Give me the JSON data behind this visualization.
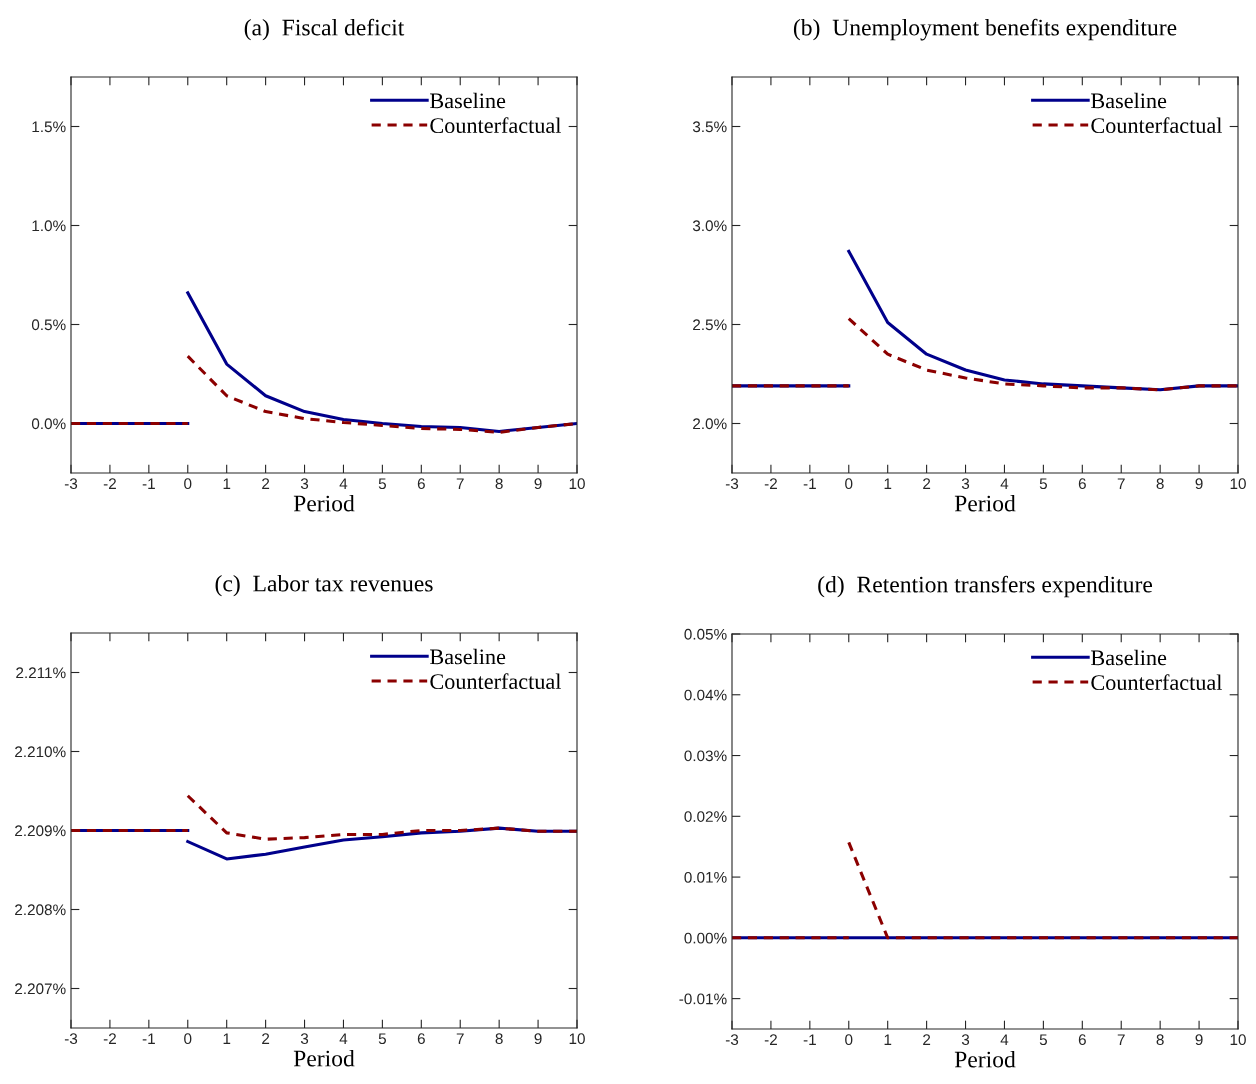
{
  "chart_data": [
    {
      "type": "line",
      "title": "(a)  Fiscal deficit",
      "xlabel": "Period",
      "xlim": [
        -3,
        10
      ],
      "xticks": [
        -3,
        -2,
        -1,
        0,
        1,
        2,
        3,
        4,
        5,
        6,
        7,
        8,
        9,
        10
      ],
      "ylim": [
        -0.25,
        1.75
      ],
      "yticks": [
        {
          "value": 0,
          "label": "0.0%"
        },
        {
          "value": 0.5,
          "label": "0.5%"
        },
        {
          "value": 1.0,
          "label": "1.0%"
        },
        {
          "value": 1.5,
          "label": "1.5%"
        }
      ],
      "legend": "top right",
      "grid": false,
      "series": [
        {
          "color": "#00008b",
          "line_style": "solid",
          "x": [
            -3,
            -2,
            -1,
            0
          ],
          "values": [
            0,
            0,
            0,
            0
          ]
        },
        {
          "color": "#8b0000",
          "line_style": "dashed",
          "x": [
            -3,
            -2,
            -1,
            0
          ],
          "values": [
            0,
            0,
            0,
            0
          ]
        },
        {
          "name": "Baseline",
          "color": "#00008b",
          "line_style": "solid",
          "x": [
            0,
            1,
            2,
            3,
            4,
            5,
            6,
            7,
            8,
            9,
            10
          ],
          "values": [
            0.66,
            0.3,
            0.14,
            0.06,
            0.02,
            0.0,
            -0.015,
            -0.02,
            -0.04,
            -0.02,
            0
          ]
        },
        {
          "name": "Counterfactual",
          "color": "#8b0000",
          "line_style": "dashed",
          "x": [
            0,
            1,
            2,
            3,
            4,
            5,
            6,
            7,
            8,
            9,
            10
          ],
          "values": [
            0.34,
            0.14,
            0.06,
            0.025,
            0.005,
            -0.01,
            -0.025,
            -0.03,
            -0.045,
            -0.02,
            0
          ]
        }
      ]
    },
    {
      "type": "line",
      "title": "(b)  Unemployment benefits expenditure",
      "xlabel": "Period",
      "xlim": [
        -3,
        10
      ],
      "xticks": [
        -3,
        -2,
        -1,
        0,
        1,
        2,
        3,
        4,
        5,
        6,
        7,
        8,
        9,
        10
      ],
      "ylim": [
        1.75,
        3.75
      ],
      "yticks": [
        {
          "value": 2.0,
          "label": "2.0%"
        },
        {
          "value": 2.5,
          "label": "2.5%"
        },
        {
          "value": 3.0,
          "label": "3.0%"
        },
        {
          "value": 3.5,
          "label": "3.5%"
        }
      ],
      "legend": "top right",
      "grid": false,
      "series": [
        {
          "color": "#00008b",
          "line_style": "solid",
          "x": [
            -3,
            -2,
            -1,
            0
          ],
          "values": [
            2.19,
            2.19,
            2.19,
            2.19
          ]
        },
        {
          "color": "#8b0000",
          "line_style": "dashed",
          "x": [
            -3,
            -2,
            -1,
            0
          ],
          "values": [
            2.19,
            2.19,
            2.19,
            2.19
          ]
        },
        {
          "name": "Baseline",
          "color": "#00008b",
          "line_style": "solid",
          "x": [
            0,
            1,
            2,
            3,
            4,
            5,
            6,
            7,
            8,
            9,
            10
          ],
          "values": [
            2.87,
            2.51,
            2.35,
            2.27,
            2.22,
            2.2,
            2.19,
            2.18,
            2.17,
            2.19,
            2.19
          ]
        },
        {
          "name": "Counterfactual",
          "color": "#8b0000",
          "line_style": "dashed",
          "x": [
            0,
            1,
            2,
            3,
            4,
            5,
            6,
            7,
            8,
            9,
            10
          ],
          "values": [
            2.53,
            2.35,
            2.27,
            2.23,
            2.2,
            2.19,
            2.18,
            2.18,
            2.17,
            2.19,
            2.19
          ]
        }
      ]
    },
    {
      "type": "line",
      "title": "(c)  Labor tax revenues",
      "xlabel": "Period",
      "xlim": [
        -3,
        10
      ],
      "xticks": [
        -3,
        -2,
        -1,
        0,
        1,
        2,
        3,
        4,
        5,
        6,
        7,
        8,
        9,
        10
      ],
      "ylim": [
        2.2065,
        2.2115
      ],
      "yticks": [
        {
          "value": 2.207,
          "label": "2.207%"
        },
        {
          "value": 2.208,
          "label": "2.208%"
        },
        {
          "value": 2.209,
          "label": "2.209%"
        },
        {
          "value": 2.21,
          "label": "2.210%"
        },
        {
          "value": 2.211,
          "label": "2.211%"
        }
      ],
      "legend": "top right",
      "grid": false,
      "series": [
        {
          "color": "#00008b",
          "line_style": "solid",
          "x": [
            -3,
            -2,
            -1,
            0
          ],
          "values": [
            2.209,
            2.209,
            2.209,
            2.209
          ]
        },
        {
          "color": "#8b0000",
          "line_style": "dashed",
          "x": [
            -3,
            -2,
            -1,
            0
          ],
          "values": [
            2.209,
            2.209,
            2.209,
            2.209
          ]
        },
        {
          "name": "Baseline",
          "color": "#00008b",
          "line_style": "solid",
          "x": [
            0,
            1,
            2,
            3,
            4,
            5,
            6,
            7,
            8,
            9,
            10
          ],
          "values": [
            2.20886,
            2.20864,
            2.2087,
            2.20879,
            2.20888,
            2.20892,
            2.20897,
            2.20899,
            2.20903,
            2.20899,
            2.20899
          ]
        },
        {
          "name": "Counterfactual",
          "color": "#8b0000",
          "line_style": "dashed",
          "x": [
            0,
            1,
            2,
            3,
            4,
            5,
            6,
            7,
            8,
            9,
            10
          ],
          "values": [
            2.20944,
            2.20897,
            2.20889,
            2.20891,
            2.20895,
            2.20895,
            2.209,
            2.209,
            2.20903,
            2.20899,
            2.20899
          ]
        }
      ]
    },
    {
      "type": "line",
      "title": "(d)  Retention transfers expenditure",
      "xlabel": "Period",
      "xlim": [
        -3,
        10
      ],
      "xticks": [
        -3,
        -2,
        -1,
        0,
        1,
        2,
        3,
        4,
        5,
        6,
        7,
        8,
        9,
        10
      ],
      "ylim": [
        -0.015,
        0.05
      ],
      "yticks": [
        {
          "value": -0.01,
          "label": "-0.01%"
        },
        {
          "value": 0,
          "label": "0.00%"
        },
        {
          "value": 0.01,
          "label": "0.01%"
        },
        {
          "value": 0.02,
          "label": "0.02%"
        },
        {
          "value": 0.03,
          "label": "0.03%"
        },
        {
          "value": 0.04,
          "label": "0.04%"
        },
        {
          "value": 0.05,
          "label": "0.05%"
        }
      ],
      "legend": "top right",
      "grid": false,
      "series": [
        {
          "name": "Baseline",
          "color": "#00008b",
          "line_style": "solid",
          "x": [
            -3,
            -2,
            -1,
            0,
            1,
            2,
            3,
            4,
            5,
            6,
            7,
            8,
            9,
            10
          ],
          "values": [
            0,
            0,
            0,
            0,
            0,
            0,
            0,
            0,
            0,
            0,
            0,
            0,
            0,
            0
          ]
        },
        {
          "color": "#8b0000",
          "line_style": "dashed",
          "x": [
            -3,
            -2,
            -1,
            0
          ],
          "values": [
            0,
            0,
            0,
            0
          ]
        },
        {
          "name": "Counterfactual",
          "color": "#8b0000",
          "line_style": "dashed",
          "x": [
            0,
            1,
            2,
            3,
            4,
            5,
            6,
            7,
            8,
            9,
            10
          ],
          "values": [
            0.0157,
            0,
            0,
            0,
            0,
            0,
            0,
            0,
            0,
            0,
            0
          ]
        }
      ]
    }
  ]
}
